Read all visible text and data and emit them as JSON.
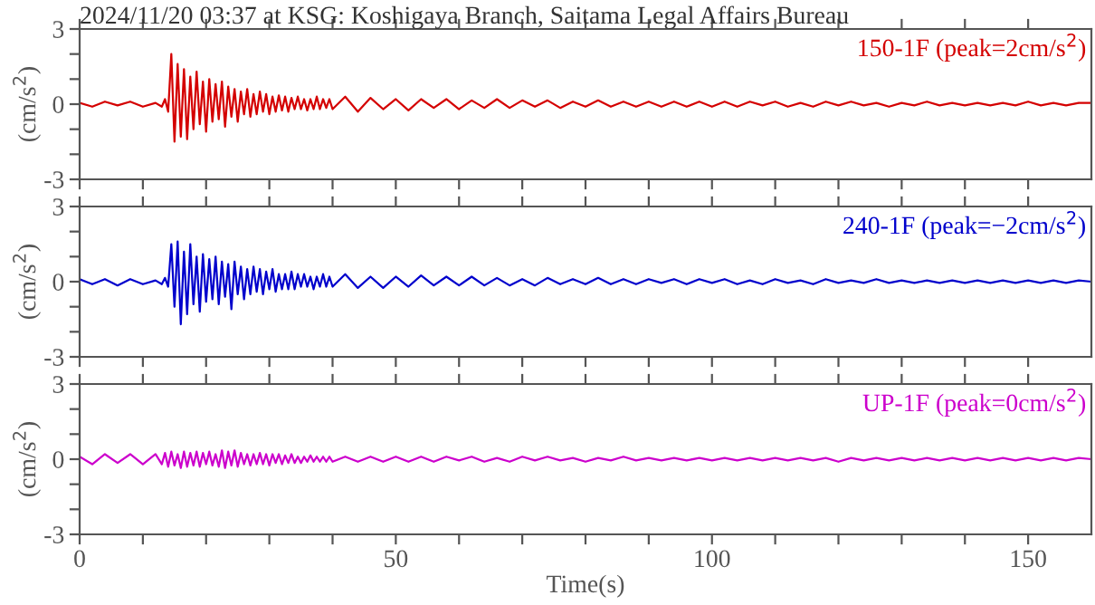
{
  "chart_data": [
    {
      "type": "line",
      "title": "2024/11/20 03:37 at KSG: Koshigaya Branch, Saitama Legal Affairs Bureau",
      "ylabel": "(cm/s$^{2}$)",
      "xlim": [
        0,
        160
      ],
      "ylim": [
        -3,
        3
      ],
      "tick_labels": "y",
      "legend": false,
      "grid": false,
      "xticks": [
        {
          "value": 0,
          "label": null
        },
        {
          "value": 10,
          "label": null
        },
        {
          "value": 20,
          "label": null
        },
        {
          "value": 30,
          "label": null
        },
        {
          "value": 40,
          "label": null
        },
        {
          "value": 50,
          "label": null
        },
        {
          "value": 60,
          "label": null
        },
        {
          "value": 70,
          "label": null
        },
        {
          "value": 80,
          "label": null
        },
        {
          "value": 90,
          "label": null
        },
        {
          "value": 100,
          "label": null
        },
        {
          "value": 110,
          "label": null
        },
        {
          "value": 120,
          "label": null
        },
        {
          "value": 130,
          "label": null
        },
        {
          "value": 140,
          "label": null
        },
        {
          "value": 150,
          "label": null
        }
      ],
      "yticks": [
        -3,
        {
          "value": -2,
          "label": null
        },
        {
          "value": -1,
          "label": null
        },
        0,
        {
          "value": 1,
          "label": null
        },
        {
          "value": 2,
          "label": null
        },
        3
      ],
      "x": [
        0,
        2,
        4,
        6,
        8,
        10,
        12,
        13,
        13.5,
        14,
        14.5,
        15,
        15.5,
        16,
        16.5,
        17,
        17.5,
        18,
        18.5,
        19,
        19.5,
        20,
        20.5,
        21,
        21.5,
        22,
        22.5,
        23,
        23.5,
        24,
        24.5,
        25,
        25.5,
        26,
        26.5,
        27,
        27.5,
        28,
        28.5,
        29,
        29.5,
        30,
        30.5,
        31,
        31.5,
        32,
        32.5,
        33,
        33.5,
        34,
        34.5,
        35,
        35.5,
        36,
        36.5,
        37,
        37.5,
        38,
        38.5,
        39,
        39.5,
        40,
        42,
        44,
        46,
        48,
        50,
        52,
        54,
        56,
        58,
        60,
        62,
        64,
        66,
        68,
        70,
        72,
        74,
        76,
        78,
        80,
        82,
        84,
        86,
        88,
        90,
        92,
        94,
        96,
        98,
        100,
        102,
        104,
        106,
        108,
        110,
        112,
        114,
        116,
        118,
        120,
        122,
        124,
        126,
        128,
        130,
        132,
        134,
        136,
        138,
        140,
        142,
        144,
        146,
        148,
        150,
        152,
        154,
        156,
        158,
        160
      ],
      "series": [
        {
          "name": "150-1F (peak=2cm/s$^{2}$)",
          "color": "#d40000",
          "values": [
            0.05,
            -0.1,
            0.1,
            -0.05,
            0.1,
            -0.1,
            0.05,
            -0.1,
            0.2,
            -0.3,
            2.0,
            -1.5,
            1.6,
            -1.3,
            1.4,
            -1.4,
            1.1,
            -1.0,
            1.3,
            -0.8,
            0.9,
            -1.1,
            1.0,
            -0.7,
            0.8,
            -0.6,
            0.9,
            -0.9,
            0.7,
            -0.5,
            0.6,
            -0.7,
            0.5,
            -0.4,
            0.6,
            -0.5,
            0.4,
            -0.4,
            0.5,
            -0.3,
            0.4,
            -0.4,
            0.3,
            -0.3,
            0.35,
            -0.25,
            0.3,
            -0.3,
            0.25,
            -0.2,
            0.3,
            -0.2,
            0.2,
            -0.25,
            0.2,
            -0.2,
            0.3,
            -0.2,
            0.2,
            -0.15,
            0.2,
            -0.2,
            0.3,
            -0.3,
            0.25,
            -0.2,
            0.2,
            -0.25,
            0.2,
            -0.15,
            0.2,
            -0.2,
            0.15,
            -0.15,
            0.2,
            -0.15,
            0.15,
            -0.1,
            0.15,
            -0.15,
            0.1,
            -0.1,
            0.15,
            -0.1,
            0.1,
            -0.1,
            0.1,
            -0.1,
            0.1,
            -0.1,
            0.1,
            -0.1,
            0.1,
            -0.1,
            0.1,
            -0.05,
            0.1,
            -0.1,
            0.05,
            -0.1,
            0.1,
            -0.05,
            0.1,
            -0.05,
            0.05,
            -0.1,
            0.05,
            -0.05,
            0.1,
            -0.05,
            0.05,
            -0.05,
            0.05,
            -0.05,
            0.05,
            -0.05,
            0.1,
            -0.05,
            0.05,
            -0.05,
            0.05,
            0.05
          ]
        }
      ]
    },
    {
      "type": "line",
      "ylabel": "(cm/s$^{2}$)",
      "xlim": [
        0,
        160
      ],
      "ylim": [
        -3,
        3
      ],
      "tick_labels": "y",
      "legend": false,
      "grid": false,
      "xticks": [
        {
          "value": 0,
          "label": null
        },
        {
          "value": 10,
          "label": null
        },
        {
          "value": 20,
          "label": null
        },
        {
          "value": 30,
          "label": null
        },
        {
          "value": 40,
          "label": null
        },
        {
          "value": 50,
          "label": null
        },
        {
          "value": 60,
          "label": null
        },
        {
          "value": 70,
          "label": null
        },
        {
          "value": 80,
          "label": null
        },
        {
          "value": 90,
          "label": null
        },
        {
          "value": 100,
          "label": null
        },
        {
          "value": 110,
          "label": null
        },
        {
          "value": 120,
          "label": null
        },
        {
          "value": 130,
          "label": null
        },
        {
          "value": 140,
          "label": null
        },
        {
          "value": 150,
          "label": null
        }
      ],
      "yticks": [
        -3,
        {
          "value": -2,
          "label": null
        },
        {
          "value": -1,
          "label": null
        },
        0,
        {
          "value": 1,
          "label": null
        },
        {
          "value": 2,
          "label": null
        },
        3
      ],
      "x": [
        0,
        2,
        4,
        6,
        8,
        10,
        12,
        13,
        13.5,
        14,
        14.5,
        15,
        15.5,
        16,
        16.5,
        17,
        17.5,
        18,
        18.5,
        19,
        19.5,
        20,
        20.5,
        21,
        21.5,
        22,
        22.5,
        23,
        23.5,
        24,
        24.5,
        25,
        25.5,
        26,
        26.5,
        27,
        27.5,
        28,
        28.5,
        29,
        29.5,
        30,
        30.5,
        31,
        31.5,
        32,
        32.5,
        33,
        33.5,
        34,
        34.5,
        35,
        35.5,
        36,
        36.5,
        37,
        37.5,
        38,
        38.5,
        39,
        39.5,
        40,
        42,
        44,
        46,
        48,
        50,
        52,
        54,
        56,
        58,
        60,
        62,
        64,
        66,
        68,
        70,
        72,
        74,
        76,
        78,
        80,
        82,
        84,
        86,
        88,
        90,
        92,
        94,
        96,
        98,
        100,
        102,
        104,
        106,
        108,
        110,
        112,
        114,
        116,
        118,
        120,
        122,
        124,
        126,
        128,
        130,
        132,
        134,
        136,
        138,
        140,
        142,
        144,
        146,
        148,
        150,
        152,
        154,
        156,
        158,
        160
      ],
      "series": [
        {
          "name": "240-1F (peak=−2cm/s$^{2}$)",
          "color": "#0000cc",
          "values": [
            0.1,
            -0.1,
            0.1,
            -0.15,
            0.1,
            -0.1,
            0.05,
            -0.1,
            0.15,
            -0.2,
            1.5,
            -1.0,
            1.6,
            -1.7,
            1.2,
            -1.3,
            1.5,
            -0.9,
            1.0,
            -1.2,
            1.1,
            -0.8,
            0.9,
            -0.7,
            1.0,
            -0.9,
            0.8,
            -0.6,
            0.7,
            -1.1,
            0.8,
            -0.5,
            0.6,
            -0.7,
            0.5,
            -0.5,
            0.6,
            -0.4,
            0.5,
            -0.5,
            0.4,
            -0.3,
            0.5,
            -0.4,
            0.3,
            -0.3,
            0.3,
            -0.3,
            0.4,
            -0.3,
            0.3,
            -0.2,
            0.3,
            -0.2,
            0.2,
            -0.3,
            0.2,
            -0.2,
            0.3,
            -0.2,
            0.2,
            -0.2,
            0.3,
            -0.25,
            0.2,
            -0.25,
            0.2,
            -0.2,
            0.25,
            -0.15,
            0.2,
            -0.15,
            0.2,
            -0.15,
            0.15,
            -0.15,
            0.1,
            -0.15,
            0.15,
            -0.1,
            0.1,
            -0.1,
            0.15,
            -0.1,
            0.1,
            -0.1,
            0.1,
            -0.05,
            0.1,
            -0.1,
            0.1,
            -0.05,
            0.1,
            -0.1,
            0.05,
            -0.1,
            0.1,
            -0.05,
            0.05,
            -0.1,
            0.1,
            -0.05,
            0.05,
            -0.05,
            0.1,
            -0.05,
            0.05,
            -0.05,
            0.05,
            -0.05,
            0.05,
            -0.05,
            0.05,
            -0.05,
            0.05,
            -0.05,
            0.05,
            -0.05,
            0.05,
            -0.05,
            0.05,
            0.0
          ]
        }
      ]
    },
    {
      "type": "line",
      "ylabel": "(cm/s$^{2}$)",
      "xlabel": "Time(s)",
      "xlim": [
        0,
        160
      ],
      "ylim": [
        -3,
        3
      ],
      "legend": false,
      "grid": false,
      "xticks": [
        0,
        {
          "value": 10,
          "label": null
        },
        {
          "value": 20,
          "label": null
        },
        {
          "value": 30,
          "label": null
        },
        {
          "value": 40,
          "label": null
        },
        50,
        {
          "value": 60,
          "label": null
        },
        {
          "value": 70,
          "label": null
        },
        {
          "value": 80,
          "label": null
        },
        {
          "value": 90,
          "label": null
        },
        100,
        {
          "value": 110,
          "label": null
        },
        {
          "value": 120,
          "label": null
        },
        {
          "value": 130,
          "label": null
        },
        {
          "value": 140,
          "label": null
        },
        150
      ],
      "yticks": [
        -3,
        {
          "value": -2,
          "label": null
        },
        {
          "value": -1,
          "label": null
        },
        0,
        {
          "value": 1,
          "label": null
        },
        {
          "value": 2,
          "label": null
        },
        3
      ],
      "x": [
        0,
        2,
        4,
        6,
        8,
        10,
        12,
        13,
        13.5,
        14,
        14.5,
        15,
        15.5,
        16,
        16.5,
        17,
        17.5,
        18,
        18.5,
        19,
        19.5,
        20,
        20.5,
        21,
        21.5,
        22,
        22.5,
        23,
        23.5,
        24,
        24.5,
        25,
        25.5,
        26,
        26.5,
        27,
        27.5,
        28,
        28.5,
        29,
        29.5,
        30,
        30.5,
        31,
        31.5,
        32,
        32.5,
        33,
        33.5,
        34,
        34.5,
        35,
        35.5,
        36,
        36.5,
        37,
        37.5,
        38,
        38.5,
        39,
        39.5,
        40,
        42,
        44,
        46,
        48,
        50,
        52,
        54,
        56,
        58,
        60,
        62,
        64,
        66,
        68,
        70,
        72,
        74,
        76,
        78,
        80,
        82,
        84,
        86,
        88,
        90,
        92,
        94,
        96,
        98,
        100,
        102,
        104,
        106,
        108,
        110,
        112,
        114,
        116,
        118,
        120,
        122,
        124,
        126,
        128,
        130,
        132,
        134,
        136,
        138,
        140,
        142,
        144,
        146,
        148,
        150,
        152,
        154,
        156,
        158,
        160
      ],
      "series": [
        {
          "name": "UP-1F (peak=0cm/s$^{2}$)",
          "color": "#cc00cc",
          "values": [
            0.1,
            -0.2,
            0.2,
            -0.15,
            0.2,
            -0.2,
            0.2,
            -0.2,
            0.25,
            -0.3,
            0.3,
            -0.25,
            0.2,
            -0.35,
            0.3,
            -0.3,
            0.25,
            -0.25,
            0.3,
            -0.3,
            0.25,
            -0.2,
            0.3,
            -0.25,
            0.2,
            -0.3,
            0.35,
            -0.35,
            0.3,
            -0.25,
            0.35,
            -0.3,
            0.25,
            -0.2,
            0.2,
            -0.25,
            0.2,
            -0.2,
            0.25,
            -0.2,
            0.2,
            -0.25,
            0.2,
            -0.15,
            0.2,
            -0.2,
            0.15,
            -0.15,
            0.2,
            -0.15,
            0.1,
            -0.15,
            0.1,
            -0.1,
            0.15,
            -0.1,
            0.1,
            -0.1,
            0.1,
            -0.1,
            0.1,
            -0.1,
            0.1,
            -0.1,
            0.1,
            -0.1,
            0.1,
            -0.1,
            0.1,
            -0.1,
            0.1,
            -0.05,
            0.1,
            -0.1,
            0.05,
            -0.1,
            0.1,
            -0.05,
            0.1,
            -0.05,
            0.05,
            -0.1,
            0.05,
            -0.05,
            0.1,
            -0.05,
            0.05,
            -0.05,
            0.05,
            -0.05,
            0.05,
            -0.05,
            0.05,
            -0.05,
            0.05,
            -0.05,
            0.05,
            -0.05,
            0.05,
            -0.05,
            0.05,
            -0.1,
            0.05,
            -0.05,
            0.05,
            -0.05,
            0.05,
            -0.05,
            0.05,
            -0.05,
            0.05,
            -0.05,
            0.05,
            -0.05,
            0.05,
            -0.05,
            0.05,
            -0.05,
            0.05,
            -0.05,
            0.05,
            0.0
          ]
        }
      ]
    }
  ]
}
